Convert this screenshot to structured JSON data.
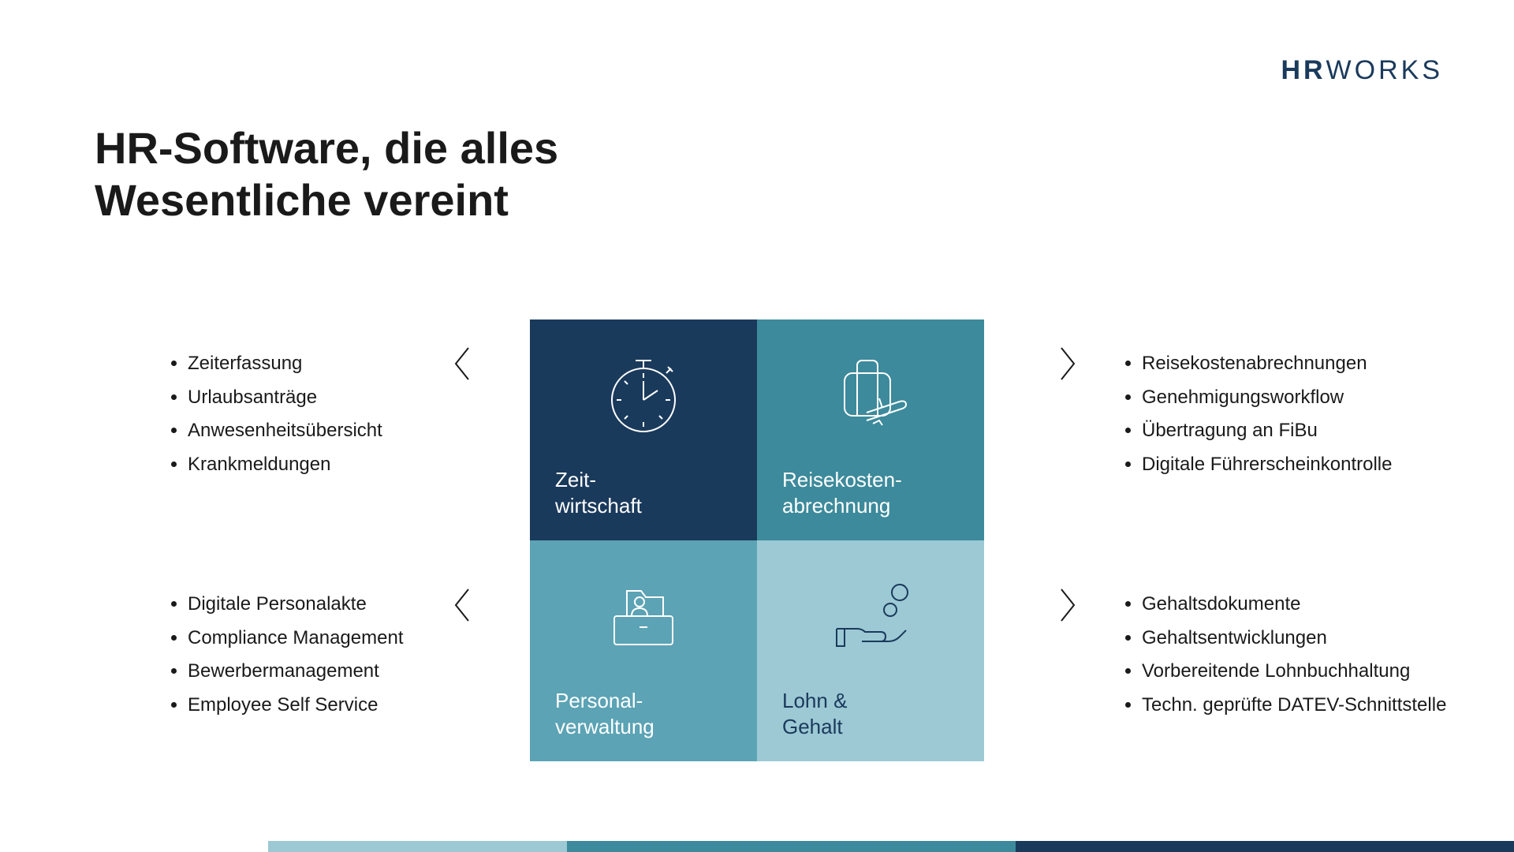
{
  "logo": {
    "bold": "HR",
    "light": "WORKS"
  },
  "headline": "HR-Software, die alles\nWesentliche vereint",
  "colors": {
    "tile_tl": "#1a3a5c",
    "tile_tr": "#3c8a9b",
    "tile_bl": "#5ba3b5",
    "tile_br": "#9cc9d4",
    "text_light": "#ffffff",
    "text_dark": "#1a3a5c",
    "footer_seg1": "#9cc9d4",
    "footer_seg2": "#3c8a9b",
    "footer_seg3": "#1a3a5c"
  },
  "tiles": {
    "tl": {
      "title": "Zeit-\nwirtschaft"
    },
    "tr": {
      "title": "Reisekosten-\nabrechnung"
    },
    "bl": {
      "title": "Personal-\nverwaltung"
    },
    "br": {
      "title": "Lohn &\nGehalt"
    }
  },
  "features": {
    "tl": [
      "Zeiterfassung",
      "Urlaubsanträge",
      "Anwesenheitsübersicht",
      "Krankmeldungen"
    ],
    "tr": [
      "Reisekostenabrechnungen",
      "Genehmigungsworkflow",
      "Übertragung an FiBu",
      "Digitale Führerscheinkontrolle"
    ],
    "bl": [
      "Digitale Personalakte",
      "Compliance Management",
      "Bewerbermanagement",
      "Employee Self Service"
    ],
    "br": [
      "Gehaltsdokumente",
      "Gehaltsentwicklungen",
      "Vorbereitende Lohnbuchhaltung",
      "Techn. geprüfte DATEV-Schnittstelle"
    ]
  },
  "footer_widths": [
    "24%",
    "36%",
    "40%"
  ]
}
